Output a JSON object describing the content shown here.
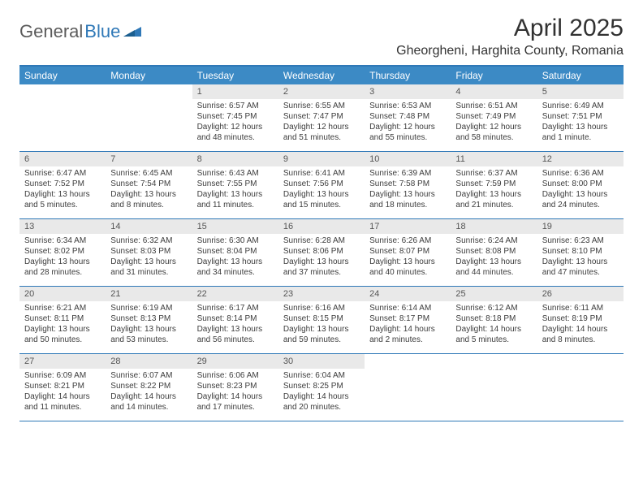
{
  "logo": {
    "part1": "General",
    "part2": "Blue"
  },
  "title": "April 2025",
  "location": "Gheorgheni, Harghita County, Romania",
  "colors": {
    "header_bg": "#3c8ac5",
    "header_border": "#2f78b7",
    "daynum_bg": "#e9e9e9",
    "text": "#3c3c3c",
    "logo_gray": "#5b5b5b",
    "logo_blue": "#2f78b7"
  },
  "day_labels": [
    "Sunday",
    "Monday",
    "Tuesday",
    "Wednesday",
    "Thursday",
    "Friday",
    "Saturday"
  ],
  "weeks": [
    [
      {
        "n": "",
        "sr": "",
        "ss": "",
        "dl1": "",
        "dl2": ""
      },
      {
        "n": "",
        "sr": "",
        "ss": "",
        "dl1": "",
        "dl2": ""
      },
      {
        "n": "1",
        "sr": "Sunrise: 6:57 AM",
        "ss": "Sunset: 7:45 PM",
        "dl1": "Daylight: 12 hours",
        "dl2": "and 48 minutes."
      },
      {
        "n": "2",
        "sr": "Sunrise: 6:55 AM",
        "ss": "Sunset: 7:47 PM",
        "dl1": "Daylight: 12 hours",
        "dl2": "and 51 minutes."
      },
      {
        "n": "3",
        "sr": "Sunrise: 6:53 AM",
        "ss": "Sunset: 7:48 PM",
        "dl1": "Daylight: 12 hours",
        "dl2": "and 55 minutes."
      },
      {
        "n": "4",
        "sr": "Sunrise: 6:51 AM",
        "ss": "Sunset: 7:49 PM",
        "dl1": "Daylight: 12 hours",
        "dl2": "and 58 minutes."
      },
      {
        "n": "5",
        "sr": "Sunrise: 6:49 AM",
        "ss": "Sunset: 7:51 PM",
        "dl1": "Daylight: 13 hours",
        "dl2": "and 1 minute."
      }
    ],
    [
      {
        "n": "6",
        "sr": "Sunrise: 6:47 AM",
        "ss": "Sunset: 7:52 PM",
        "dl1": "Daylight: 13 hours",
        "dl2": "and 5 minutes."
      },
      {
        "n": "7",
        "sr": "Sunrise: 6:45 AM",
        "ss": "Sunset: 7:54 PM",
        "dl1": "Daylight: 13 hours",
        "dl2": "and 8 minutes."
      },
      {
        "n": "8",
        "sr": "Sunrise: 6:43 AM",
        "ss": "Sunset: 7:55 PM",
        "dl1": "Daylight: 13 hours",
        "dl2": "and 11 minutes."
      },
      {
        "n": "9",
        "sr": "Sunrise: 6:41 AM",
        "ss": "Sunset: 7:56 PM",
        "dl1": "Daylight: 13 hours",
        "dl2": "and 15 minutes."
      },
      {
        "n": "10",
        "sr": "Sunrise: 6:39 AM",
        "ss": "Sunset: 7:58 PM",
        "dl1": "Daylight: 13 hours",
        "dl2": "and 18 minutes."
      },
      {
        "n": "11",
        "sr": "Sunrise: 6:37 AM",
        "ss": "Sunset: 7:59 PM",
        "dl1": "Daylight: 13 hours",
        "dl2": "and 21 minutes."
      },
      {
        "n": "12",
        "sr": "Sunrise: 6:36 AM",
        "ss": "Sunset: 8:00 PM",
        "dl1": "Daylight: 13 hours",
        "dl2": "and 24 minutes."
      }
    ],
    [
      {
        "n": "13",
        "sr": "Sunrise: 6:34 AM",
        "ss": "Sunset: 8:02 PM",
        "dl1": "Daylight: 13 hours",
        "dl2": "and 28 minutes."
      },
      {
        "n": "14",
        "sr": "Sunrise: 6:32 AM",
        "ss": "Sunset: 8:03 PM",
        "dl1": "Daylight: 13 hours",
        "dl2": "and 31 minutes."
      },
      {
        "n": "15",
        "sr": "Sunrise: 6:30 AM",
        "ss": "Sunset: 8:04 PM",
        "dl1": "Daylight: 13 hours",
        "dl2": "and 34 minutes."
      },
      {
        "n": "16",
        "sr": "Sunrise: 6:28 AM",
        "ss": "Sunset: 8:06 PM",
        "dl1": "Daylight: 13 hours",
        "dl2": "and 37 minutes."
      },
      {
        "n": "17",
        "sr": "Sunrise: 6:26 AM",
        "ss": "Sunset: 8:07 PM",
        "dl1": "Daylight: 13 hours",
        "dl2": "and 40 minutes."
      },
      {
        "n": "18",
        "sr": "Sunrise: 6:24 AM",
        "ss": "Sunset: 8:08 PM",
        "dl1": "Daylight: 13 hours",
        "dl2": "and 44 minutes."
      },
      {
        "n": "19",
        "sr": "Sunrise: 6:23 AM",
        "ss": "Sunset: 8:10 PM",
        "dl1": "Daylight: 13 hours",
        "dl2": "and 47 minutes."
      }
    ],
    [
      {
        "n": "20",
        "sr": "Sunrise: 6:21 AM",
        "ss": "Sunset: 8:11 PM",
        "dl1": "Daylight: 13 hours",
        "dl2": "and 50 minutes."
      },
      {
        "n": "21",
        "sr": "Sunrise: 6:19 AM",
        "ss": "Sunset: 8:13 PM",
        "dl1": "Daylight: 13 hours",
        "dl2": "and 53 minutes."
      },
      {
        "n": "22",
        "sr": "Sunrise: 6:17 AM",
        "ss": "Sunset: 8:14 PM",
        "dl1": "Daylight: 13 hours",
        "dl2": "and 56 minutes."
      },
      {
        "n": "23",
        "sr": "Sunrise: 6:16 AM",
        "ss": "Sunset: 8:15 PM",
        "dl1": "Daylight: 13 hours",
        "dl2": "and 59 minutes."
      },
      {
        "n": "24",
        "sr": "Sunrise: 6:14 AM",
        "ss": "Sunset: 8:17 PM",
        "dl1": "Daylight: 14 hours",
        "dl2": "and 2 minutes."
      },
      {
        "n": "25",
        "sr": "Sunrise: 6:12 AM",
        "ss": "Sunset: 8:18 PM",
        "dl1": "Daylight: 14 hours",
        "dl2": "and 5 minutes."
      },
      {
        "n": "26",
        "sr": "Sunrise: 6:11 AM",
        "ss": "Sunset: 8:19 PM",
        "dl1": "Daylight: 14 hours",
        "dl2": "and 8 minutes."
      }
    ],
    [
      {
        "n": "27",
        "sr": "Sunrise: 6:09 AM",
        "ss": "Sunset: 8:21 PM",
        "dl1": "Daylight: 14 hours",
        "dl2": "and 11 minutes."
      },
      {
        "n": "28",
        "sr": "Sunrise: 6:07 AM",
        "ss": "Sunset: 8:22 PM",
        "dl1": "Daylight: 14 hours",
        "dl2": "and 14 minutes."
      },
      {
        "n": "29",
        "sr": "Sunrise: 6:06 AM",
        "ss": "Sunset: 8:23 PM",
        "dl1": "Daylight: 14 hours",
        "dl2": "and 17 minutes."
      },
      {
        "n": "30",
        "sr": "Sunrise: 6:04 AM",
        "ss": "Sunset: 8:25 PM",
        "dl1": "Daylight: 14 hours",
        "dl2": "and 20 minutes."
      },
      {
        "n": "",
        "sr": "",
        "ss": "",
        "dl1": "",
        "dl2": ""
      },
      {
        "n": "",
        "sr": "",
        "ss": "",
        "dl1": "",
        "dl2": ""
      },
      {
        "n": "",
        "sr": "",
        "ss": "",
        "dl1": "",
        "dl2": ""
      }
    ]
  ]
}
